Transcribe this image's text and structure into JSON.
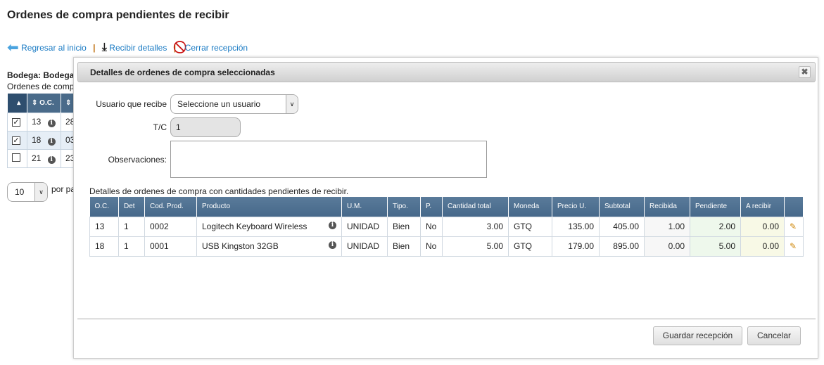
{
  "page": {
    "title": "Ordenes de compra pendientes de recibir"
  },
  "toolbar": {
    "back": "Regresar al inicio",
    "receive": "Recibir detalles",
    "close": "Cerrar recepción"
  },
  "background": {
    "bodega": "Bodega: Bodega",
    "subtitle": "Ordenes de comp",
    "headers": [
      "",
      "O.C.",
      ""
    ],
    "rows": [
      {
        "checked": true,
        "oc": "13",
        "date": "28"
      },
      {
        "checked": true,
        "oc": "18",
        "date": "03"
      },
      {
        "checked": false,
        "oc": "21",
        "date": "23"
      }
    ],
    "page_size": "10",
    "per_page": "por pa"
  },
  "dialog": {
    "title": "Detalles de ordenes de compra seleccionadas",
    "user_label": "Usuario que recibe",
    "user_value": "Seleccione un usuario",
    "tc_label": "T/C",
    "tc_value": "1",
    "obs_label": "Observaciones:",
    "obs_value": "",
    "table_caption": "Detalles de ordenes de compra con cantidades pendientes de recibir.",
    "headers": [
      "O.C.",
      "Det",
      "Cod. Prod.",
      "Producto",
      "U.M.",
      "Tipo.",
      "P.",
      "Cantidad total",
      "Moneda",
      "Precio U.",
      "Subtotal",
      "Recibida",
      "Pendiente",
      "A recibir",
      ""
    ],
    "rows": [
      [
        "13",
        "1",
        "0002",
        "Logitech Keyboard Wireless",
        "UNIDAD",
        "Bien",
        "No",
        "3.00",
        "GTQ",
        "135.00",
        "405.00",
        "1.00",
        "2.00",
        "0.00"
      ],
      [
        "18",
        "1",
        "0001",
        "USB Kingston 32GB",
        "UNIDAD",
        "Bien",
        "No",
        "5.00",
        "GTQ",
        "179.00",
        "895.00",
        "0.00",
        "5.00",
        "0.00"
      ]
    ],
    "save": "Guardar recepción",
    "cancel": "Cancelar"
  },
  "colors": {
    "header": "#4a6b8a",
    "link": "#1a7bc4",
    "pending_bg": "#eef8ec",
    "receive_bg": "#f8f9e6"
  }
}
